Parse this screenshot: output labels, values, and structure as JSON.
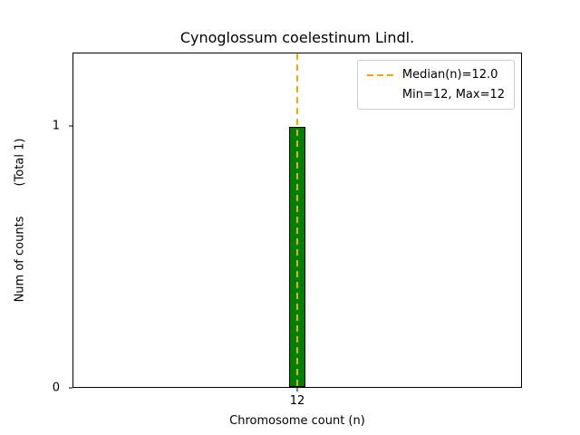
{
  "chart_data": {
    "type": "bar",
    "title": "Cynoglossum coelestinum Lindl.",
    "xlabel": "Chromosome count (n)",
    "ylabel": "Num of counts        (Total 1)",
    "categories": [
      "12"
    ],
    "values": [
      1
    ],
    "ylim": [
      0,
      1.28
    ],
    "yticks": [
      0,
      1
    ],
    "ytick_labels": [
      "0",
      "1"
    ],
    "grid": false,
    "bar_color": "#008000",
    "bar_edge_color": "#000000",
    "median_line": {
      "x": "12",
      "color": "#FFA500",
      "style": "dashed"
    },
    "legend": {
      "position": "upper-right",
      "entries": [
        {
          "label": "Median(n)=12.0",
          "marker": "dashed-line",
          "color": "#FFA500"
        },
        {
          "label": "Min=12, Max=12",
          "marker": "none",
          "color": ""
        }
      ]
    }
  }
}
